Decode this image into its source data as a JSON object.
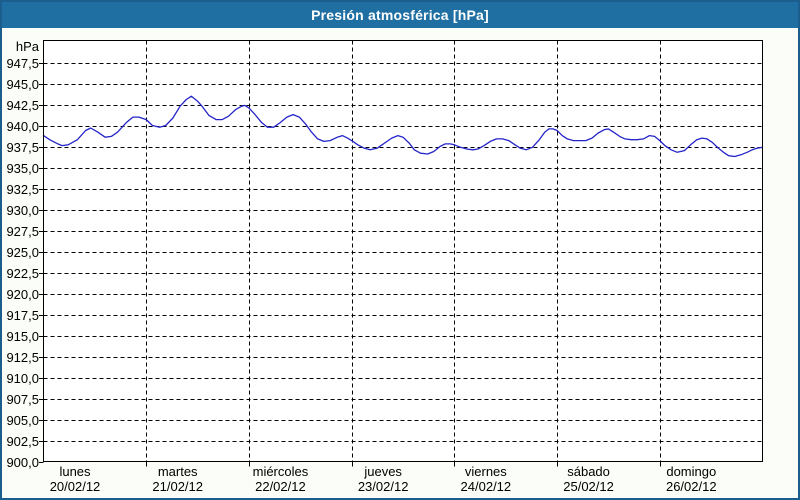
{
  "window": {
    "title": "Presión atmosférica [hPa]",
    "titlebar_color": "#1f6fa3",
    "border_color": "#1b5e8d",
    "margin_background": "#fbfdf8",
    "plot_background": "#ffffff"
  },
  "chart_data": {
    "type": "line",
    "title": "Presión atmosférica [hPa]",
    "xlabel": "",
    "ylabel": "hPa",
    "legend": "none",
    "grid": "dashed-black",
    "line_color": "#2424c8",
    "y_axis": {
      "label": "hPa",
      "min": 900,
      "max": 950.2,
      "tick_step": 2.5,
      "ticks": [
        {
          "label": "947,5",
          "value": 947.5
        },
        {
          "label": "945,0",
          "value": 945.0
        },
        {
          "label": "942,5",
          "value": 942.5
        },
        {
          "label": "940,0",
          "value": 940.0
        },
        {
          "label": "937,5",
          "value": 937.5
        },
        {
          "label": "935,0",
          "value": 935.0
        },
        {
          "label": "932,5",
          "value": 932.5
        },
        {
          "label": "930,0",
          "value": 930.0
        },
        {
          "label": "927,5",
          "value": 927.5
        },
        {
          "label": "925,0",
          "value": 925.0
        },
        {
          "label": "922,5",
          "value": 922.5
        },
        {
          "label": "920,0",
          "value": 920.0
        },
        {
          "label": "917,5",
          "value": 917.5
        },
        {
          "label": "915,0",
          "value": 915.0
        },
        {
          "label": "912,5",
          "value": 912.5
        },
        {
          "label": "910,0",
          "value": 910.0
        },
        {
          "label": "907,5",
          "value": 907.5
        },
        {
          "label": "905,0",
          "value": 905.0
        },
        {
          "label": "902,5",
          "value": 902.5
        },
        {
          "label": "900,0",
          "value": 900.0
        }
      ]
    },
    "x_axis": {
      "unit": "days",
      "range_days": [
        0,
        7
      ],
      "days": [
        {
          "name": "lunes",
          "date": "20/02/12"
        },
        {
          "name": "martes",
          "date": "21/02/12"
        },
        {
          "name": "miércoles",
          "date": "22/02/12"
        },
        {
          "name": "jueves",
          "date": "23/02/12"
        },
        {
          "name": "viernes",
          "date": "24/02/12"
        },
        {
          "name": "sábado",
          "date": "25/02/12"
        },
        {
          "name": "domingo",
          "date": "26/02/12"
        }
      ]
    },
    "series": [
      {
        "name": "Presión atmosférica",
        "points": [
          [
            0.0,
            938.9
          ],
          [
            0.06,
            938.4
          ],
          [
            0.14,
            937.9
          ],
          [
            0.18,
            937.7
          ],
          [
            0.24,
            937.8
          ],
          [
            0.33,
            938.4
          ],
          [
            0.41,
            939.5
          ],
          [
            0.46,
            939.8
          ],
          [
            0.53,
            939.3
          ],
          [
            0.6,
            938.7
          ],
          [
            0.66,
            938.8
          ],
          [
            0.72,
            939.3
          ],
          [
            0.81,
            940.5
          ],
          [
            0.87,
            941.1
          ],
          [
            0.93,
            941.1
          ],
          [
            1.0,
            940.8
          ],
          [
            1.06,
            940.1
          ],
          [
            1.13,
            939.9
          ],
          [
            1.19,
            940.1
          ],
          [
            1.26,
            941.0
          ],
          [
            1.33,
            942.4
          ],
          [
            1.39,
            943.2
          ],
          [
            1.44,
            943.6
          ],
          [
            1.5,
            943.0
          ],
          [
            1.55,
            942.3
          ],
          [
            1.61,
            941.3
          ],
          [
            1.68,
            940.8
          ],
          [
            1.74,
            940.8
          ],
          [
            1.8,
            941.2
          ],
          [
            1.87,
            942.0
          ],
          [
            1.93,
            942.4
          ],
          [
            1.96,
            942.5
          ],
          [
            2.0,
            942.2
          ],
          [
            2.06,
            941.4
          ],
          [
            2.12,
            940.5
          ],
          [
            2.18,
            939.9
          ],
          [
            2.24,
            939.9
          ],
          [
            2.3,
            940.4
          ],
          [
            2.37,
            941.1
          ],
          [
            2.43,
            941.4
          ],
          [
            2.49,
            941.1
          ],
          [
            2.55,
            940.3
          ],
          [
            2.61,
            939.3
          ],
          [
            2.67,
            938.5
          ],
          [
            2.73,
            938.2
          ],
          [
            2.79,
            938.3
          ],
          [
            2.86,
            938.7
          ],
          [
            2.91,
            938.9
          ],
          [
            2.96,
            938.6
          ],
          [
            3.0,
            938.3
          ],
          [
            3.06,
            937.8
          ],
          [
            3.12,
            937.4
          ],
          [
            3.18,
            937.2
          ],
          [
            3.25,
            937.4
          ],
          [
            3.32,
            938.0
          ],
          [
            3.39,
            938.6
          ],
          [
            3.45,
            938.9
          ],
          [
            3.5,
            938.7
          ],
          [
            3.56,
            938.0
          ],
          [
            3.61,
            937.2
          ],
          [
            3.67,
            936.8
          ],
          [
            3.74,
            936.7
          ],
          [
            3.8,
            937.0
          ],
          [
            3.86,
            937.6
          ],
          [
            3.91,
            937.9
          ],
          [
            3.96,
            937.9
          ],
          [
            4.0,
            937.8
          ],
          [
            4.06,
            937.5
          ],
          [
            4.12,
            937.3
          ],
          [
            4.18,
            937.2
          ],
          [
            4.23,
            937.3
          ],
          [
            4.29,
            937.7
          ],
          [
            4.35,
            938.2
          ],
          [
            4.41,
            938.5
          ],
          [
            4.47,
            938.5
          ],
          [
            4.53,
            938.3
          ],
          [
            4.59,
            937.8
          ],
          [
            4.64,
            937.4
          ],
          [
            4.7,
            937.2
          ],
          [
            4.76,
            937.5
          ],
          [
            4.82,
            938.3
          ],
          [
            4.88,
            939.3
          ],
          [
            4.92,
            939.7
          ],
          [
            4.96,
            939.7
          ],
          [
            5.0,
            939.5
          ],
          [
            5.05,
            938.9
          ],
          [
            5.1,
            938.5
          ],
          [
            5.16,
            938.3
          ],
          [
            5.22,
            938.3
          ],
          [
            5.28,
            938.3
          ],
          [
            5.34,
            938.6
          ],
          [
            5.4,
            939.2
          ],
          [
            5.46,
            939.6
          ],
          [
            5.5,
            939.7
          ],
          [
            5.55,
            939.3
          ],
          [
            5.61,
            938.8
          ],
          [
            5.66,
            938.5
          ],
          [
            5.72,
            938.4
          ],
          [
            5.78,
            938.4
          ],
          [
            5.84,
            938.5
          ],
          [
            5.9,
            938.9
          ],
          [
            5.95,
            938.8
          ],
          [
            6.0,
            938.3
          ],
          [
            6.05,
            937.7
          ],
          [
            6.11,
            937.2
          ],
          [
            6.17,
            936.9
          ],
          [
            6.24,
            937.1
          ],
          [
            6.3,
            937.8
          ],
          [
            6.36,
            938.4
          ],
          [
            6.41,
            938.6
          ],
          [
            6.46,
            938.5
          ],
          [
            6.51,
            938.1
          ],
          [
            6.57,
            937.4
          ],
          [
            6.62,
            936.9
          ],
          [
            6.67,
            936.5
          ],
          [
            6.73,
            936.4
          ],
          [
            6.79,
            936.6
          ],
          [
            6.85,
            936.9
          ],
          [
            6.9,
            937.2
          ],
          [
            6.95,
            937.4
          ],
          [
            7.0,
            937.5
          ]
        ]
      }
    ]
  }
}
